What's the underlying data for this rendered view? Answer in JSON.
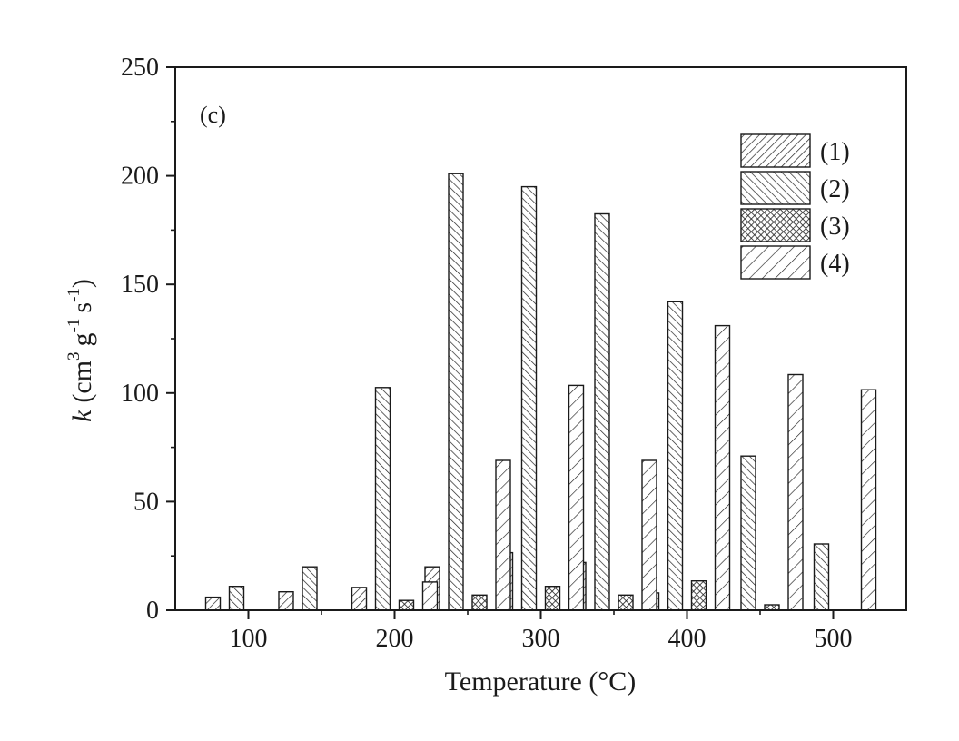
{
  "chart_data": {
    "type": "bar",
    "panel_label": "(c)",
    "xlabel": "Temperature (°C)",
    "ylabel": {
      "k": "k",
      "unit_open": "(cm",
      "sup3": "3",
      "g": "g",
      "supg": "-1",
      "s": "s",
      "sups": "-1",
      "unit_close": ")"
    },
    "xlim": [
      50,
      550
    ],
    "ylim": [
      0,
      250
    ],
    "x_ticks": [
      100,
      200,
      300,
      400,
      500
    ],
    "y_ticks": [
      0,
      50,
      100,
      150,
      200,
      250
    ],
    "categories": [
      100,
      150,
      200,
      250,
      300,
      350,
      400,
      450,
      500
    ],
    "legend_position": "top-right",
    "series": [
      {
        "name": "(1)",
        "pattern": "hatch-forward-dense",
        "values": [
          6,
          8.5,
          10.5,
          20,
          26.5,
          22,
          8,
          0,
          0
        ]
      },
      {
        "name": "(2)",
        "pattern": "hatch-back-dense",
        "values": [
          11,
          20,
          102.5,
          201,
          195,
          182.5,
          142,
          71,
          30.5
        ]
      },
      {
        "name": "(3)",
        "pattern": "crosshatch",
        "values": [
          0,
          0,
          4.5,
          7,
          11,
          7,
          13.5,
          2.5,
          0
        ]
      },
      {
        "name": "(4)",
        "pattern": "hatch-forward-wide",
        "values": [
          0,
          0,
          13,
          69,
          103.5,
          69,
          131,
          108.5,
          101.5
        ]
      }
    ]
  }
}
